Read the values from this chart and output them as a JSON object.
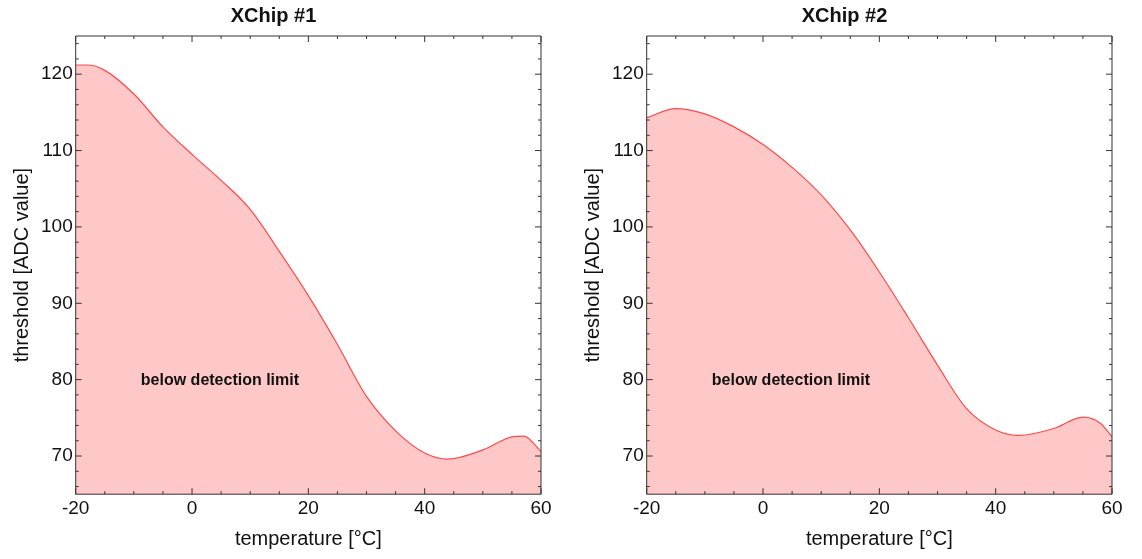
{
  "chart_data": [
    {
      "type": "area",
      "title": "XChip #1",
      "xlabel": "temperature [°C]",
      "ylabel": "threshold [ADC value]",
      "x": [
        -20,
        -18,
        -15,
        -10,
        -5,
        0,
        5,
        10,
        15,
        20,
        25,
        30,
        35,
        40,
        44,
        50,
        55,
        57,
        60
      ],
      "series": [
        {
          "color": "#ff4a4a",
          "values": [
            121.2,
            121.2,
            120.5,
            117.4,
            113.1,
            109.5,
            106.1,
            102.3,
            96.8,
            91.0,
            84.6,
            77.8,
            73.3,
            70.4,
            69.6,
            70.8,
            72.5,
            72.6,
            70.6
          ]
        }
      ],
      "xlim": [
        -20,
        60
      ],
      "ylim": [
        65,
        125
      ],
      "xticks": [
        -20,
        {
          "value": -15,
          "label": null
        },
        {
          "value": -10,
          "label": null
        },
        {
          "value": -5,
          "label": null
        },
        0,
        {
          "value": 5,
          "label": null
        },
        {
          "value": 10,
          "label": null
        },
        {
          "value": 15,
          "label": null
        },
        20,
        {
          "value": 25,
          "label": null
        },
        {
          "value": 30,
          "label": null
        },
        {
          "value": 35,
          "label": null
        },
        40,
        {
          "value": 45,
          "label": null
        },
        {
          "value": 50,
          "label": null
        },
        {
          "value": 55,
          "label": null
        },
        60
      ],
      "yticks": [
        {
          "value": 66,
          "label": null
        },
        {
          "value": 68,
          "label": null
        },
        70,
        {
          "value": 72,
          "label": null
        },
        {
          "value": 74,
          "label": null
        },
        {
          "value": 76,
          "label": null
        },
        {
          "value": 78,
          "label": null
        },
        80,
        {
          "value": 82,
          "label": null
        },
        {
          "value": 84,
          "label": null
        },
        {
          "value": 86,
          "label": null
        },
        {
          "value": 88,
          "label": null
        },
        90,
        {
          "value": 92,
          "label": null
        },
        {
          "value": 94,
          "label": null
        },
        {
          "value": 96,
          "label": null
        },
        {
          "value": 98,
          "label": null
        },
        100,
        {
          "value": 102,
          "label": null
        },
        {
          "value": 104,
          "label": null
        },
        {
          "value": 106,
          "label": null
        },
        {
          "value": 108,
          "label": null
        },
        110,
        {
          "value": 112,
          "label": null
        },
        {
          "value": 114,
          "label": null
        },
        {
          "value": 116,
          "label": null
        },
        {
          "value": 118,
          "label": null
        },
        120,
        {
          "value": 122,
          "label": null
        },
        {
          "value": 124,
          "label": null
        }
      ],
      "annotations": [
        "below detection limit"
      ]
    },
    {
      "type": "area",
      "title": "XChip #2",
      "xlabel": "temperature [°C]",
      "ylabel": "threshold [ADC value]",
      "x": [
        -20,
        -15,
        -10,
        -5,
        0,
        5,
        10,
        15,
        20,
        25,
        30,
        35,
        40,
        44,
        50,
        55,
        58,
        60
      ],
      "series": [
        {
          "color": "#ff4a4a",
          "values": [
            114.3,
            115.5,
            114.8,
            113.1,
            110.8,
            107.8,
            104.2,
            99.6,
            94.1,
            88.1,
            81.9,
            76.2,
            73.4,
            72.7,
            73.6,
            75.1,
            74.3,
            72.5
          ]
        }
      ],
      "xlim": [
        -20,
        60
      ],
      "ylim": [
        65,
        125
      ],
      "xticks": [
        -20,
        {
          "value": -15,
          "label": null
        },
        {
          "value": -10,
          "label": null
        },
        {
          "value": -5,
          "label": null
        },
        0,
        {
          "value": 5,
          "label": null
        },
        {
          "value": 10,
          "label": null
        },
        {
          "value": 15,
          "label": null
        },
        20,
        {
          "value": 25,
          "label": null
        },
        {
          "value": 30,
          "label": null
        },
        {
          "value": 35,
          "label": null
        },
        40,
        {
          "value": 45,
          "label": null
        },
        {
          "value": 50,
          "label": null
        },
        {
          "value": 55,
          "label": null
        },
        60
      ],
      "yticks": [
        {
          "value": 66,
          "label": null
        },
        {
          "value": 68,
          "label": null
        },
        70,
        {
          "value": 72,
          "label": null
        },
        {
          "value": 74,
          "label": null
        },
        {
          "value": 76,
          "label": null
        },
        {
          "value": 78,
          "label": null
        },
        80,
        {
          "value": 82,
          "label": null
        },
        {
          "value": 84,
          "label": null
        },
        {
          "value": 86,
          "label": null
        },
        {
          "value": 88,
          "label": null
        },
        90,
        {
          "value": 92,
          "label": null
        },
        {
          "value": 94,
          "label": null
        },
        {
          "value": 96,
          "label": null
        },
        {
          "value": 98,
          "label": null
        },
        100,
        {
          "value": 102,
          "label": null
        },
        {
          "value": 104,
          "label": null
        },
        {
          "value": 106,
          "label": null
        },
        {
          "value": 108,
          "label": null
        },
        110,
        {
          "value": 112,
          "label": null
        },
        {
          "value": 114,
          "label": null
        },
        {
          "value": 116,
          "label": null
        },
        {
          "value": 118,
          "label": null
        },
        120,
        {
          "value": 122,
          "label": null
        },
        {
          "value": 124,
          "label": null
        }
      ],
      "annotations": [
        "below detection limit"
      ]
    }
  ]
}
